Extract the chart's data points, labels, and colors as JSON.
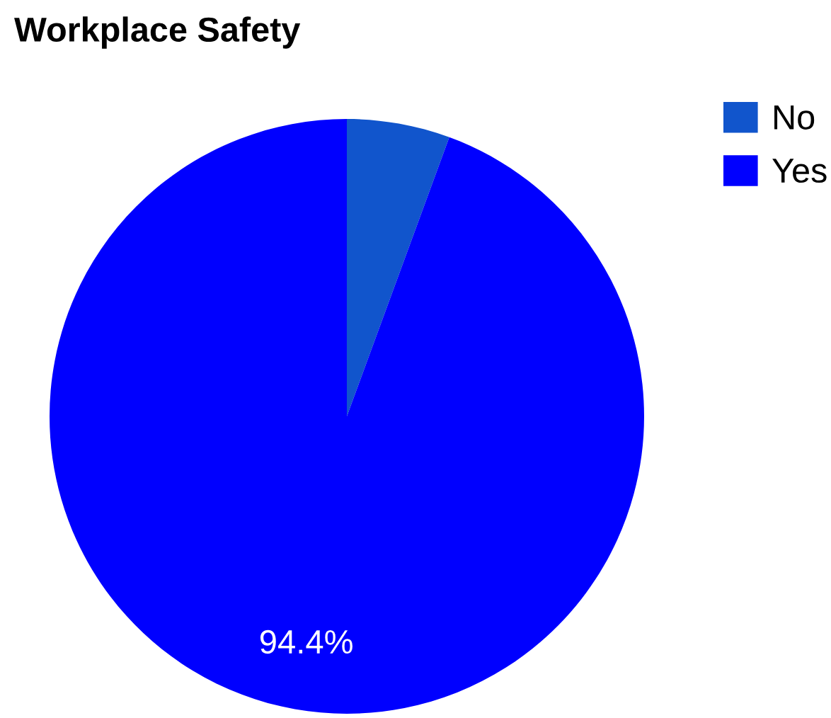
{
  "chart_data": {
    "type": "pie",
    "title": "Workplace Safety",
    "categories": [
      "No",
      "Yes"
    ],
    "values": [
      5.6,
      94.4
    ],
    "colors": [
      "#1155cc",
      "#0000ff"
    ],
    "value_labels": [
      null,
      "94.4%"
    ],
    "legend": "top right"
  }
}
